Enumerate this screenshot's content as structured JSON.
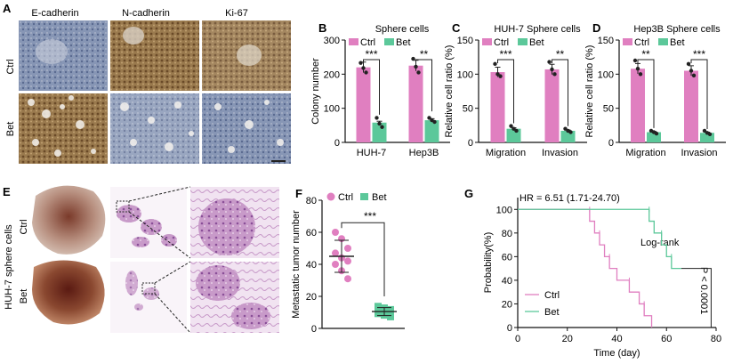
{
  "panels": {
    "A": {
      "label": "A",
      "columns": [
        "E-cadherin",
        "N-cadherin",
        "Ki-67"
      ],
      "rows": [
        "Ctrl",
        "Bet"
      ]
    },
    "E": {
      "label": "E",
      "row_label": "HUH-7 sphere cells",
      "rows": [
        "Ctrl",
        "Bet"
      ]
    }
  },
  "colors": {
    "ctrl": "#e07fc0",
    "bet": "#5cc89a",
    "axis": "#111111",
    "ihc_brown": "#8a6a3e",
    "ihc_blue": "#7f8fb0",
    "he_purple": "#b37fb8"
  },
  "chart_data": [
    {
      "panel": "B",
      "type": "bar",
      "title": "Sphere cells",
      "categories": [
        "HUH-7",
        "Hep3B"
      ],
      "series": [
        {
          "name": "Ctrl",
          "values": [
            220,
            225
          ]
        },
        {
          "name": "Bet",
          "values": [
            58,
            65
          ]
        }
      ],
      "ylabel": "Colony number",
      "ylim": [
        0,
        300
      ],
      "yticks": [
        0,
        100,
        200,
        300
      ],
      "significance": [
        "***",
        "**"
      ],
      "points": {
        "Ctrl": [
          [
            233,
            218,
            205
          ],
          [
            245,
            222,
            205
          ]
        ],
        "Bet": [
          [
            72,
            55,
            45
          ],
          [
            72,
            65,
            60
          ]
        ]
      }
    },
    {
      "panel": "C",
      "type": "bar",
      "title": "HUH-7 Sphere cells",
      "categories": [
        "Migration",
        "Invasion"
      ],
      "series": [
        {
          "name": "Ctrl",
          "values": [
            103,
            107
          ]
        },
        {
          "name": "Bet",
          "values": [
            20,
            17
          ]
        }
      ],
      "ylabel": "Relative cell ratio (%)",
      "ylim": [
        0,
        150
      ],
      "yticks": [
        0,
        50,
        100,
        150
      ],
      "significance": [
        "***",
        "**"
      ],
      "points": {
        "Ctrl": [
          [
            115,
            100,
            97
          ],
          [
            118,
            107,
            100
          ]
        ],
        "Bet": [
          [
            24,
            20,
            17
          ],
          [
            20,
            17,
            15
          ]
        ]
      }
    },
    {
      "panel": "D",
      "type": "bar",
      "title": "Hep3B Sphere cells",
      "categories": [
        "Migration",
        "Invasion"
      ],
      "series": [
        {
          "name": "Ctrl",
          "values": [
            108,
            105
          ]
        },
        {
          "name": "Bet",
          "values": [
            15,
            14
          ]
        }
      ],
      "ylabel": "Relative cell ratio (%)",
      "ylim": [
        0,
        150
      ],
      "yticks": [
        0,
        50,
        100,
        150
      ],
      "significance": [
        "**",
        "***"
      ],
      "points": {
        "Ctrl": [
          [
            120,
            108,
            100
          ],
          [
            115,
            105,
            98
          ]
        ],
        "Bet": [
          [
            17,
            15,
            13
          ],
          [
            17,
            14,
            12
          ]
        ]
      }
    },
    {
      "panel": "F",
      "type": "scatter",
      "title": "",
      "categories": [
        "Ctrl",
        "Bet"
      ],
      "series": [
        {
          "name": "Ctrl",
          "values": [
            60,
            56,
            50,
            47,
            44,
            42,
            40,
            36,
            31
          ],
          "mean": 45,
          "sd": 10
        },
        {
          "name": "Bet",
          "values": [
            14,
            13,
            12,
            11,
            11,
            10,
            9,
            8,
            7
          ],
          "mean": 10.5,
          "sd": 2.5
        }
      ],
      "ylabel": "Metastatic tumor number",
      "ylim": [
        0,
        80
      ],
      "yticks": [
        0,
        20,
        40,
        60,
        80
      ],
      "significance": [
        "***"
      ]
    },
    {
      "panel": "G",
      "type": "line",
      "title": "",
      "annotation": "HR = 6.51 (1.71-24.70)",
      "test_label": "Log-rank",
      "pvalue": "P < 0.0001",
      "xlabel": "Time (day)",
      "ylabel": "Probability(%)",
      "xlim": [
        0,
        80
      ],
      "ylim": [
        0,
        110
      ],
      "xticks": [
        0,
        20,
        40,
        60,
        80
      ],
      "yticks": [
        0,
        20,
        40,
        60,
        80,
        100
      ],
      "series": [
        {
          "name": "Ctrl",
          "steps": [
            [
              0,
              100
            ],
            [
              29,
              100
            ],
            [
              29,
              90
            ],
            [
              31,
              90
            ],
            [
              31,
              80
            ],
            [
              33,
              80
            ],
            [
              33,
              70
            ],
            [
              35,
              70
            ],
            [
              35,
              60
            ],
            [
              37,
              60
            ],
            [
              37,
              50
            ],
            [
              40,
              50
            ],
            [
              40,
              40
            ],
            [
              45,
              40
            ],
            [
              45,
              30
            ],
            [
              49,
              30
            ],
            [
              49,
              20
            ],
            [
              51,
              20
            ],
            [
              51,
              10
            ],
            [
              54,
              10
            ],
            [
              54,
              0
            ]
          ]
        },
        {
          "name": "Bet",
          "steps": [
            [
              0,
              100
            ],
            [
              53,
              100
            ],
            [
              53,
              90
            ],
            [
              55,
              90
            ],
            [
              55,
              80
            ],
            [
              58,
              80
            ],
            [
              58,
              70
            ],
            [
              60,
              70
            ],
            [
              60,
              60
            ],
            [
              62,
              60
            ],
            [
              62,
              50
            ],
            [
              66,
              50
            ]
          ]
        }
      ]
    }
  ]
}
